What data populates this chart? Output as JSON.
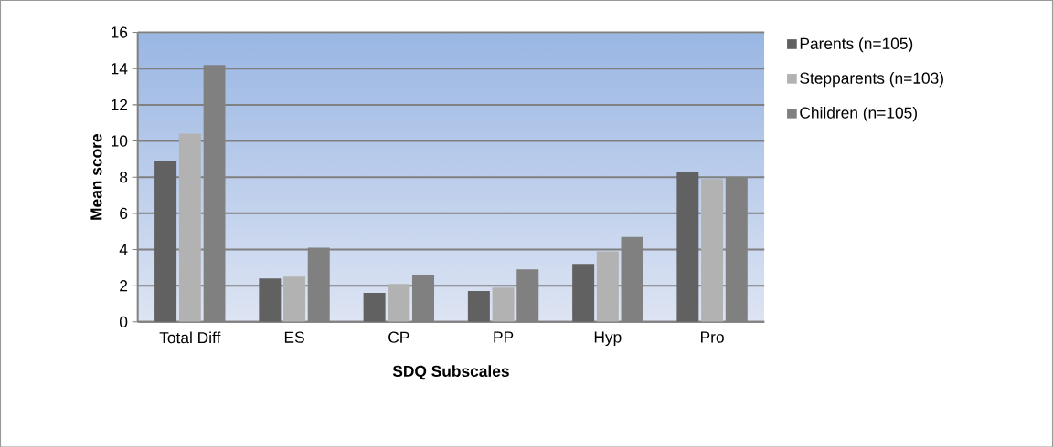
{
  "chart_data": {
    "type": "bar",
    "xlabel": "SDQ Subscales",
    "ylabel": "Mean score",
    "categories": [
      "Total Diff",
      "ES",
      "CP",
      "PP",
      "Hyp",
      "Pro"
    ],
    "series": [
      {
        "name": "Parents (n=105)",
        "color": "#616161",
        "values": [
          8.9,
          2.4,
          1.6,
          1.7,
          3.2,
          8.3
        ]
      },
      {
        "name": "Stepparents (n=103)",
        "color": "#b2b2b2",
        "values": [
          10.4,
          2.5,
          2.1,
          1.9,
          3.9,
          7.9
        ]
      },
      {
        "name": "Children (n=105)",
        "color": "#808080",
        "values": [
          14.2,
          4.1,
          2.6,
          2.9,
          4.7,
          8.0
        ]
      }
    ],
    "ylim": [
      0,
      16
    ],
    "yticks": [
      0,
      2,
      4,
      6,
      8,
      10,
      12,
      14,
      16
    ],
    "grid": "y",
    "legend": "right"
  }
}
